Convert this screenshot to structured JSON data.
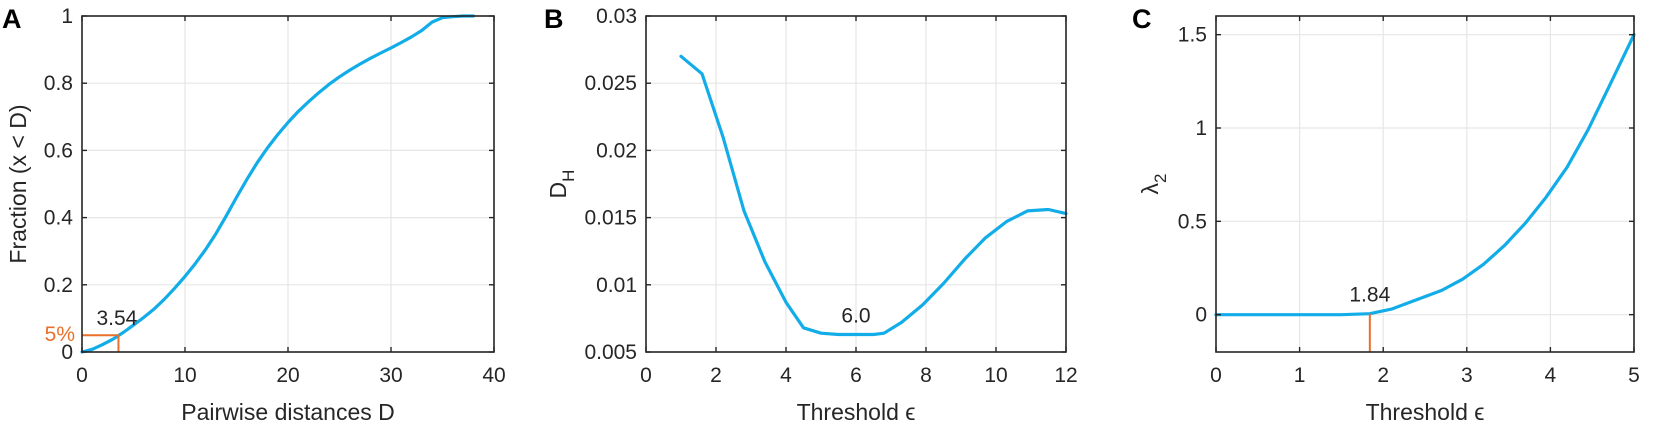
{
  "colors": {
    "line": "#12ADE8",
    "marker": "#E8702A",
    "axis": "#262626",
    "grid": "#E6E6E6"
  },
  "chart_data": [
    {
      "type": "line",
      "panel_label": "A",
      "xlabel": "Pairwise distances D",
      "ylabel": "Fraction (x < D)",
      "xlim": [
        0,
        40
      ],
      "ylim": [
        0,
        1
      ],
      "grid": true,
      "xticks": [
        0,
        10,
        20,
        30,
        40
      ],
      "xtick_labels": [
        "0",
        "10",
        "20",
        "30",
        "40"
      ],
      "yticks": [
        0,
        0.2,
        0.4,
        0.6,
        0.8,
        1
      ],
      "ytick_labels": [
        "0",
        "0.2",
        "0.4",
        "0.6",
        "0.8",
        "1"
      ],
      "series": [
        {
          "x": [
            0,
            1,
            2,
            3,
            4,
            5,
            6,
            7,
            8,
            9,
            10,
            11,
            12,
            13,
            14,
            15,
            16,
            17,
            18,
            19,
            20,
            21,
            22,
            23,
            24,
            25,
            26,
            27,
            28,
            29,
            30,
            31,
            32,
            33,
            34,
            35,
            36,
            37,
            38
          ],
          "y": [
            0,
            0.008,
            0.022,
            0.038,
            0.058,
            0.08,
            0.103,
            0.128,
            0.157,
            0.19,
            0.225,
            0.263,
            0.305,
            0.352,
            0.405,
            0.46,
            0.513,
            0.563,
            0.607,
            0.647,
            0.683,
            0.716,
            0.745,
            0.772,
            0.797,
            0.819,
            0.839,
            0.857,
            0.874,
            0.89,
            0.905,
            0.921,
            0.938,
            0.957,
            0.982,
            0.995,
            0.998,
            1.0,
            1.0
          ]
        }
      ],
      "marker": {
        "x": 3.54,
        "y": 0.05,
        "x_label": "3.54",
        "y_label": "5%"
      }
    },
    {
      "type": "line",
      "panel_label": "B",
      "xlabel": "Threshold ϵ",
      "ylabel_main": "D",
      "ylabel_sub": "H",
      "xlim": [
        0,
        12
      ],
      "ylim": [
        0.005,
        0.03
      ],
      "grid": true,
      "xticks": [
        0,
        2,
        4,
        6,
        8,
        10,
        12
      ],
      "xtick_labels": [
        "0",
        "2",
        "4",
        "6",
        "8",
        "10",
        "12"
      ],
      "yticks": [
        0.005,
        0.01,
        0.015,
        0.02,
        0.025,
        0.03
      ],
      "ytick_labels": [
        "0.005",
        "0.01",
        "0.015",
        "0.02",
        "0.025",
        "0.03"
      ],
      "series": [
        {
          "x": [
            1,
            1.6,
            2.2,
            2.8,
            3.4,
            4.0,
            4.5,
            5.0,
            5.5,
            6.0,
            6.5,
            6.8,
            7.3,
            7.9,
            8.5,
            9.1,
            9.7,
            10.3,
            10.9,
            11.5,
            12.0
          ],
          "y": [
            0.027,
            0.0257,
            0.021,
            0.0155,
            0.0117,
            0.0087,
            0.0068,
            0.0064,
            0.0063,
            0.0063,
            0.0063,
            0.0064,
            0.0072,
            0.0085,
            0.0101,
            0.0119,
            0.0135,
            0.0147,
            0.0155,
            0.0156,
            0.0153
          ]
        }
      ],
      "annotation": {
        "x": 6.0,
        "y": 0.0063,
        "text": "6.0"
      }
    },
    {
      "type": "line",
      "panel_label": "C",
      "xlabel": "Threshold ϵ",
      "ylabel_main": "λ",
      "ylabel_sub": "2",
      "xlim": [
        0,
        5
      ],
      "ylim": [
        -0.2,
        1.6
      ],
      "grid": true,
      "xticks": [
        0,
        1,
        2,
        3,
        4,
        5
      ],
      "xtick_labels": [
        "0",
        "1",
        "2",
        "3",
        "4",
        "5"
      ],
      "yticks": [
        0,
        0.5,
        1,
        1.5
      ],
      "ytick_labels": [
        "0",
        "0.5",
        "1",
        "1.5"
      ],
      "series": [
        {
          "x": [
            0,
            0.5,
            1.0,
            1.5,
            1.84,
            2.1,
            2.4,
            2.7,
            2.95,
            3.2,
            3.45,
            3.7,
            3.95,
            4.2,
            4.45,
            4.7,
            5.0
          ],
          "y": [
            0,
            0,
            0,
            0,
            0.005,
            0.03,
            0.08,
            0.13,
            0.19,
            0.27,
            0.37,
            0.49,
            0.63,
            0.79,
            0.99,
            1.22,
            1.5
          ]
        }
      ],
      "marker": {
        "x": 1.84,
        "y": 0.005,
        "x_label": "1.84"
      }
    }
  ]
}
